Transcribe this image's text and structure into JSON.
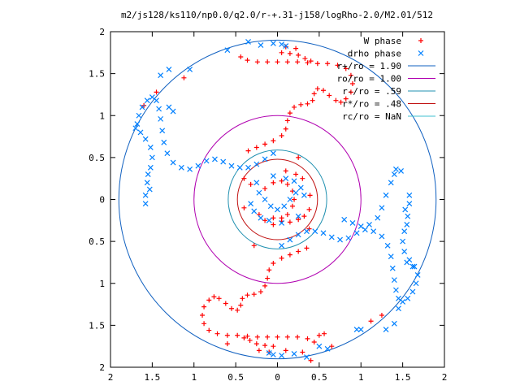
{
  "chart_data": {
    "type": "scatter",
    "title": "m2/js128/ks110/np0.0/q2.0/r-+.31-j158/logRho-2.0/M2.01/512",
    "xlabel": "",
    "ylabel": "",
    "xlim": [
      -2,
      2
    ],
    "ylim": [
      -2,
      2
    ],
    "x_ticks": [
      -2,
      -1.5,
      -1,
      -0.5,
      0,
      0.5,
      1,
      1.5,
      2
    ],
    "y_ticks": [
      -2,
      -1.5,
      -1,
      -0.5,
      0,
      0.5,
      1,
      1.5,
      2
    ],
    "x_tick_labels": [
      "2",
      "1.5",
      "1",
      "0.5",
      "0",
      "0.5",
      "1",
      "1.5",
      "2"
    ],
    "y_tick_labels": [
      "2",
      "1.5",
      "1",
      "0.5",
      "0",
      "0.5",
      "1",
      "1.5",
      "2"
    ],
    "legend_position": "top-right",
    "grid": false,
    "series": [
      {
        "name": "W phase",
        "marker": "plus",
        "color": "#ff0000",
        "points": [
          [
            -0.15,
            0.13
          ],
          [
            -0.05,
            0.2
          ],
          [
            0.05,
            0.22
          ],
          [
            0.12,
            0.18
          ],
          [
            0.18,
            0.1
          ],
          [
            0.2,
            0.0
          ],
          [
            0.18,
            -0.08
          ],
          [
            0.12,
            -0.18
          ],
          [
            0.05,
            -0.22
          ],
          [
            -0.05,
            -0.22
          ],
          [
            0.05,
            -0.26
          ],
          [
            0.15,
            -0.27
          ],
          [
            0.25,
            -0.24
          ],
          [
            0.32,
            -0.2
          ],
          [
            0.38,
            -0.12
          ],
          [
            -0.05,
            -0.3
          ],
          [
            -0.15,
            -0.25
          ],
          [
            -0.22,
            -0.18
          ],
          [
            0.1,
            0.34
          ],
          [
            0.22,
            0.3
          ],
          [
            0.3,
            0.25
          ],
          [
            -0.32,
            0.18
          ],
          [
            -0.4,
            -0.1
          ],
          [
            0.25,
            0.5
          ],
          [
            -0.28,
            -0.55
          ],
          [
            0.38,
            -0.35
          ],
          [
            0.39,
            0.05
          ],
          [
            -0.4,
            0.25
          ],
          [
            -0.35,
            0.58
          ],
          [
            -0.25,
            0.62
          ],
          [
            -0.15,
            0.66
          ],
          [
            -0.05,
            0.7
          ],
          [
            0.05,
            0.76
          ],
          [
            0.1,
            0.84
          ],
          [
            0.12,
            0.94
          ],
          [
            0.15,
            1.03
          ],
          [
            0.2,
            1.1
          ],
          [
            0.28,
            1.13
          ],
          [
            0.36,
            1.14
          ],
          [
            0.42,
            1.18
          ],
          [
            0.44,
            1.26
          ],
          [
            0.48,
            1.32
          ],
          [
            0.55,
            1.3
          ],
          [
            0.62,
            1.24
          ],
          [
            0.7,
            1.18
          ],
          [
            0.76,
            1.16
          ],
          [
            0.82,
            1.2
          ],
          [
            0.88,
            1.28
          ],
          [
            0.9,
            1.38
          ],
          [
            0.88,
            1.48
          ],
          [
            0.82,
            1.56
          ],
          [
            0.72,
            1.6
          ],
          [
            0.6,
            1.62
          ],
          [
            0.48,
            1.62
          ],
          [
            0.36,
            1.63
          ],
          [
            0.24,
            1.64
          ],
          [
            0.12,
            1.64
          ],
          [
            0.0,
            1.64
          ],
          [
            -0.12,
            1.64
          ],
          [
            -0.24,
            1.64
          ],
          [
            -0.36,
            1.66
          ],
          [
            -0.44,
            1.7
          ],
          [
            0.05,
            1.75
          ],
          [
            0.15,
            1.74
          ],
          [
            0.25,
            1.72
          ],
          [
            0.33,
            1.68
          ],
          [
            0.4,
            1.65
          ],
          [
            0.1,
            1.82
          ],
          [
            0.22,
            1.8
          ],
          [
            -1.12,
            1.45
          ],
          [
            -1.6,
            1.12
          ],
          [
            -1.45,
            1.28
          ],
          [
            0.35,
            -0.58
          ],
          [
            0.25,
            -0.62
          ],
          [
            0.15,
            -0.66
          ],
          [
            0.05,
            -0.7
          ],
          [
            -0.05,
            -0.76
          ],
          [
            -0.1,
            -0.84
          ],
          [
            -0.12,
            -0.94
          ],
          [
            -0.15,
            -1.03
          ],
          [
            -0.2,
            -1.1
          ],
          [
            -0.28,
            -1.13
          ],
          [
            -0.36,
            -1.14
          ],
          [
            -0.42,
            -1.18
          ],
          [
            -0.44,
            -1.26
          ],
          [
            -0.48,
            -1.32
          ],
          [
            -0.55,
            -1.3
          ],
          [
            -0.62,
            -1.24
          ],
          [
            -0.7,
            -1.18
          ],
          [
            -0.76,
            -1.16
          ],
          [
            -0.82,
            -1.2
          ],
          [
            -0.88,
            -1.28
          ],
          [
            -0.9,
            -1.38
          ],
          [
            -0.88,
            -1.48
          ],
          [
            -0.82,
            -1.56
          ],
          [
            -0.72,
            -1.6
          ],
          [
            -0.6,
            -1.62
          ],
          [
            -0.48,
            -1.62
          ],
          [
            -0.36,
            -1.63
          ],
          [
            -0.24,
            -1.64
          ],
          [
            -0.12,
            -1.64
          ],
          [
            0.0,
            -1.64
          ],
          [
            0.12,
            -1.64
          ],
          [
            0.24,
            -1.64
          ],
          [
            0.36,
            -1.66
          ],
          [
            0.44,
            -1.7
          ],
          [
            0.5,
            -1.62
          ],
          [
            0.56,
            -1.6
          ],
          [
            -0.05,
            -1.75
          ],
          [
            -0.15,
            -1.74
          ],
          [
            -0.25,
            -1.72
          ],
          [
            -0.33,
            -1.68
          ],
          [
            -0.4,
            -1.65
          ],
          [
            -0.1,
            -1.82
          ],
          [
            -0.22,
            -1.8
          ],
          [
            -0.6,
            -1.72
          ],
          [
            0.1,
            -1.8
          ],
          [
            0.3,
            -1.82
          ],
          [
            0.65,
            -1.75
          ],
          [
            1.12,
            -1.45
          ],
          [
            1.25,
            -1.38
          ],
          [
            0.4,
            -1.92
          ]
        ]
      },
      {
        "name": "drho phase",
        "marker": "cross",
        "color": "#0080ff",
        "points": [
          [
            -0.22,
            0.08
          ],
          [
            -0.15,
            0.0
          ],
          [
            -0.08,
            -0.08
          ],
          [
            0.0,
            -0.12
          ],
          [
            0.08,
            -0.08
          ],
          [
            0.15,
            0.0
          ],
          [
            0.22,
            0.08
          ],
          [
            0.28,
            0.14
          ],
          [
            -0.28,
            -0.14
          ],
          [
            -0.2,
            -0.22
          ],
          [
            -0.1,
            -0.25
          ],
          [
            0.1,
            0.25
          ],
          [
            0.2,
            0.22
          ],
          [
            -0.32,
            -0.05
          ],
          [
            0.32,
            0.05
          ],
          [
            -0.05,
            0.28
          ],
          [
            0.05,
            -0.28
          ],
          [
            -0.25,
            0.2
          ],
          [
            0.25,
            -0.2
          ],
          [
            -0.05,
            0.55
          ],
          [
            -0.15,
            0.48
          ],
          [
            -0.25,
            0.42
          ],
          [
            -0.35,
            0.38
          ],
          [
            -0.45,
            0.38
          ],
          [
            -0.55,
            0.4
          ],
          [
            -0.65,
            0.45
          ],
          [
            -0.75,
            0.48
          ],
          [
            -0.85,
            0.46
          ],
          [
            -0.95,
            0.4
          ],
          [
            -1.05,
            0.36
          ],
          [
            -1.15,
            0.38
          ],
          [
            -1.25,
            0.44
          ],
          [
            -1.32,
            0.55
          ],
          [
            -1.36,
            0.68
          ],
          [
            -1.38,
            0.82
          ],
          [
            -1.4,
            0.96
          ],
          [
            -1.42,
            1.08
          ],
          [
            -1.45,
            1.18
          ],
          [
            -1.5,
            1.22
          ],
          [
            -1.56,
            1.18
          ],
          [
            -1.62,
            1.1
          ],
          [
            -1.66,
            1.0
          ],
          [
            -1.68,
            0.9
          ],
          [
            -1.64,
            0.8
          ],
          [
            -1.58,
            0.72
          ],
          [
            -1.52,
            0.62
          ],
          [
            -1.5,
            0.5
          ],
          [
            -1.52,
            0.38
          ],
          [
            -1.56,
            0.2
          ],
          [
            -1.58,
            0.05
          ],
          [
            -1.58,
            -0.05
          ],
          [
            -1.55,
            0.3
          ],
          [
            -1.53,
            0.12
          ],
          [
            -1.7,
            0.85
          ],
          [
            -1.4,
            1.48
          ],
          [
            -1.3,
            1.55
          ],
          [
            -1.05,
            1.55
          ],
          [
            -0.6,
            1.78
          ],
          [
            -0.35,
            1.88
          ],
          [
            -0.2,
            1.84
          ],
          [
            -0.05,
            1.86
          ],
          [
            0.05,
            1.85
          ],
          [
            0.1,
            1.83
          ],
          [
            -1.3,
            1.1
          ],
          [
            -1.25,
            1.05
          ],
          [
            0.05,
            -0.55
          ],
          [
            0.15,
            -0.48
          ],
          [
            0.25,
            -0.42
          ],
          [
            0.35,
            -0.38
          ],
          [
            0.45,
            -0.38
          ],
          [
            0.55,
            -0.4
          ],
          [
            0.65,
            -0.45
          ],
          [
            0.75,
            -0.48
          ],
          [
            0.85,
            -0.46
          ],
          [
            0.95,
            -0.4
          ],
          [
            1.05,
            -0.36
          ],
          [
            1.15,
            -0.38
          ],
          [
            1.25,
            -0.44
          ],
          [
            1.32,
            -0.55
          ],
          [
            1.36,
            -0.68
          ],
          [
            1.38,
            -0.82
          ],
          [
            1.4,
            -0.96
          ],
          [
            1.42,
            -1.08
          ],
          [
            1.45,
            -1.18
          ],
          [
            1.5,
            -1.22
          ],
          [
            1.56,
            -1.18
          ],
          [
            1.62,
            -1.1
          ],
          [
            1.66,
            -1.0
          ],
          [
            1.68,
            -0.9
          ],
          [
            1.64,
            -0.8
          ],
          [
            1.58,
            -0.72
          ],
          [
            1.52,
            -0.62
          ],
          [
            1.5,
            -0.5
          ],
          [
            1.52,
            -0.38
          ],
          [
            1.56,
            -0.2
          ],
          [
            1.58,
            -0.05
          ],
          [
            1.58,
            0.05
          ],
          [
            1.55,
            -0.3
          ],
          [
            1.53,
            -0.12
          ],
          [
            1.4,
            0.3
          ],
          [
            1.42,
            0.36
          ],
          [
            1.48,
            0.34
          ],
          [
            1.36,
            0.2
          ],
          [
            1.3,
            0.05
          ],
          [
            1.25,
            -0.1
          ],
          [
            1.2,
            -0.22
          ],
          [
            1.1,
            -0.3
          ],
          [
            1.0,
            -0.32
          ],
          [
            0.9,
            -0.28
          ],
          [
            0.8,
            -0.24
          ],
          [
            1.45,
            -1.3
          ],
          [
            1.4,
            -1.48
          ],
          [
            1.3,
            -1.55
          ],
          [
            0.95,
            -1.55
          ],
          [
            0.6,
            -1.78
          ],
          [
            0.35,
            -1.88
          ],
          [
            0.2,
            -1.84
          ],
          [
            0.05,
            -1.86
          ],
          [
            -0.05,
            -1.85
          ],
          [
            -0.1,
            -1.83
          ],
          [
            1.0,
            -1.55
          ],
          [
            0.5,
            -1.75
          ],
          [
            1.55,
            -0.75
          ],
          [
            1.62,
            -0.8
          ]
        ]
      }
    ],
    "circles": [
      {
        "name": "r+/ro = 1.90",
        "radius": 1.9,
        "color": "#1060c0"
      },
      {
        "name": "ro/ro = 1.00",
        "radius": 1.0,
        "color": "#b000b0"
      },
      {
        "name": "r-/ro = .59",
        "radius": 0.59,
        "color": "#2090b0"
      },
      {
        "name": "r*/ro = .48",
        "radius": 0.48,
        "color": "#c01010"
      },
      {
        "name": "rc/ro = NaN",
        "radius": null,
        "color": "#40c0d0"
      }
    ],
    "legend": [
      {
        "label": "W phase",
        "kind": "marker",
        "marker": "plus",
        "color": "#ff0000"
      },
      {
        "label": "drho phase",
        "kind": "marker",
        "marker": "cross",
        "color": "#0080ff"
      },
      {
        "label": "r+/ro = 1.90",
        "kind": "line",
        "color": "#1060c0"
      },
      {
        "label": "ro/ro = 1.00",
        "kind": "line",
        "color": "#b000b0"
      },
      {
        "label": "r-/ro = .59",
        "kind": "line",
        "color": "#2090b0"
      },
      {
        "label": "r*/ro = .48",
        "kind": "line",
        "color": "#c01010"
      },
      {
        "label": "rc/ro = NaN",
        "kind": "line",
        "color": "#40c0d0"
      }
    ]
  }
}
